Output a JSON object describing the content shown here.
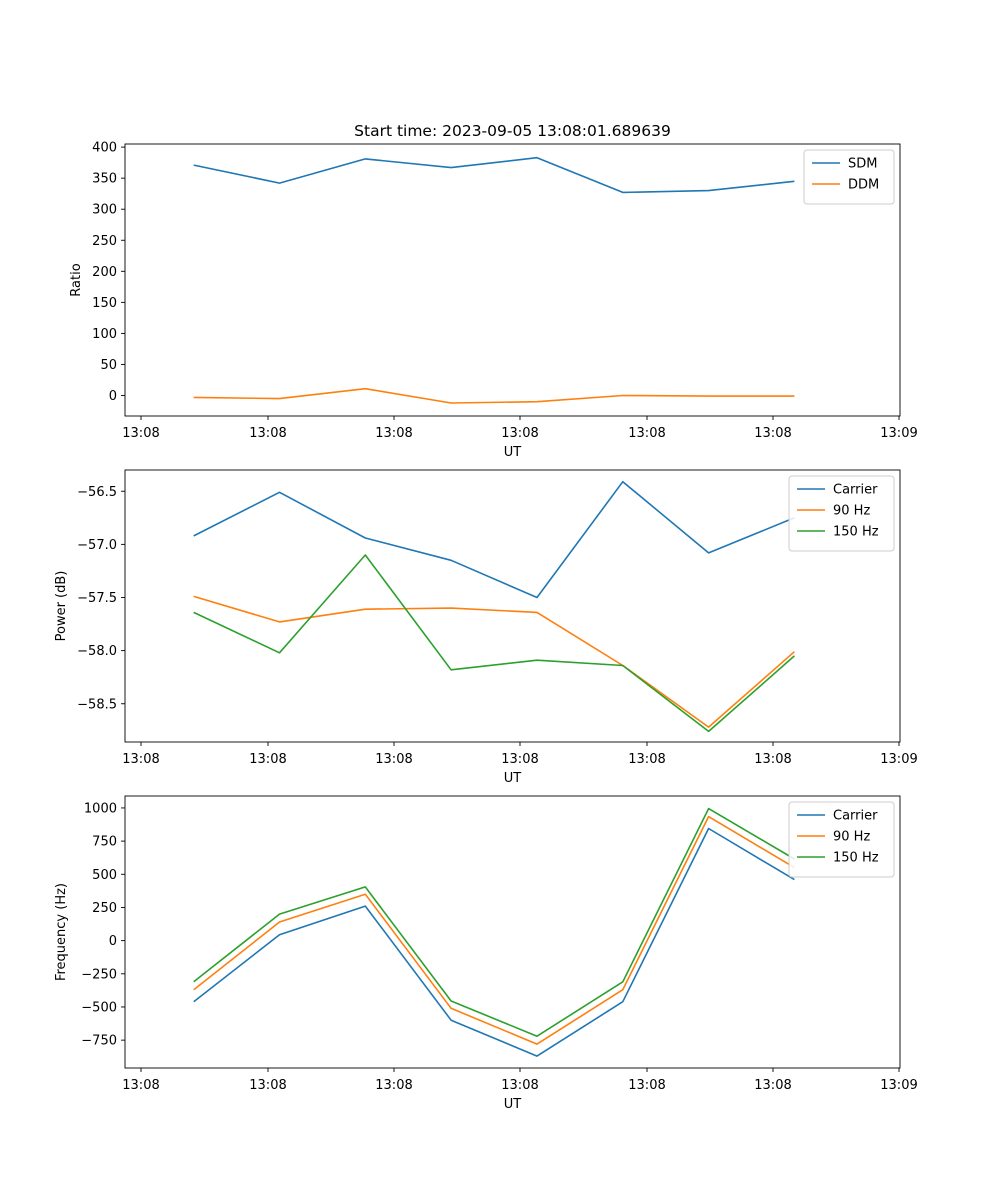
{
  "chart_data": [
    {
      "type": "line",
      "title": "Start time: 2023-09-05 13:08:01.689639",
      "xlabel": "UT",
      "ylabel": "Ratio",
      "xtick_labels": [
        "13:08",
        "13:08",
        "13:08",
        "13:08",
        "13:08",
        "13:08",
        "13:09"
      ],
      "x": [
        1,
        2,
        3,
        4,
        5,
        6,
        7,
        8
      ],
      "xlim": [
        0.2,
        9.23
      ],
      "ylim": [
        -33,
        405
      ],
      "yticks": [
        0,
        50,
        100,
        150,
        200,
        250,
        300,
        350,
        400
      ],
      "legend": "top-right",
      "series": [
        {
          "name": "SDM",
          "color": "#1f77b4",
          "values": [
            371,
            342,
            381,
            367,
            383,
            327,
            330,
            345
          ]
        },
        {
          "name": "DDM",
          "color": "#ff7f0e",
          "values": [
            -3,
            -5,
            11,
            -12,
            -10,
            0,
            -1,
            -1
          ]
        }
      ]
    },
    {
      "type": "line",
      "title": "",
      "xlabel": "UT",
      "ylabel": "Power (dB)",
      "xtick_labels": [
        "13:08",
        "13:08",
        "13:08",
        "13:08",
        "13:08",
        "13:08",
        "13:09"
      ],
      "x": [
        1,
        2,
        3,
        4,
        5,
        6,
        7,
        8
      ],
      "xlim": [
        0.2,
        9.23
      ],
      "ylim": [
        -58.86,
        -56.3
      ],
      "yticks": [
        -58.5,
        -58.0,
        -57.5,
        -57.0,
        -56.5
      ],
      "ytick_labels": [
        "−58.5",
        "−58.0",
        "−57.5",
        "−57.0",
        "−56.5"
      ],
      "legend": "top-right",
      "series": [
        {
          "name": "Carrier",
          "color": "#1f77b4",
          "values": [
            -56.92,
            -56.51,
            -56.94,
            -57.15,
            -57.5,
            -56.41,
            -57.08,
            -56.75
          ]
        },
        {
          "name": "90 Hz",
          "color": "#ff7f0e",
          "values": [
            -57.49,
            -57.73,
            -57.61,
            -57.6,
            -57.64,
            -58.14,
            -58.72,
            -58.01
          ]
        },
        {
          "name": "150 Hz",
          "color": "#2ca02c",
          "values": [
            -57.64,
            -58.02,
            -57.1,
            -58.18,
            -58.09,
            -58.14,
            -58.76,
            -58.05
          ]
        }
      ]
    },
    {
      "type": "line",
      "title": "",
      "xlabel": "UT",
      "ylabel": "Frequency (Hz)",
      "xtick_labels": [
        "13:08",
        "13:08",
        "13:08",
        "13:08",
        "13:08",
        "13:08",
        "13:09"
      ],
      "x": [
        1,
        2,
        3,
        4,
        5,
        6,
        7,
        8
      ],
      "xlim": [
        0.2,
        9.23
      ],
      "ylim": [
        -960,
        1090
      ],
      "yticks": [
        -750,
        -500,
        -250,
        0,
        250,
        500,
        750,
        1000
      ],
      "ytick_labels": [
        "−750",
        "−500",
        "−250",
        "0",
        "250",
        "500",
        "750",
        "1000"
      ],
      "legend": "top-right",
      "series": [
        {
          "name": "Carrier",
          "color": "#1f77b4",
          "values": [
            -460,
            45,
            260,
            -600,
            -870,
            -460,
            845,
            460
          ]
        },
        {
          "name": "90 Hz",
          "color": "#ff7f0e",
          "values": [
            -370,
            140,
            350,
            -510,
            -780,
            -370,
            935,
            550
          ]
        },
        {
          "name": "150 Hz",
          "color": "#2ca02c",
          "values": [
            -310,
            200,
            405,
            -455,
            -720,
            -310,
            995,
            615
          ]
        }
      ]
    }
  ]
}
